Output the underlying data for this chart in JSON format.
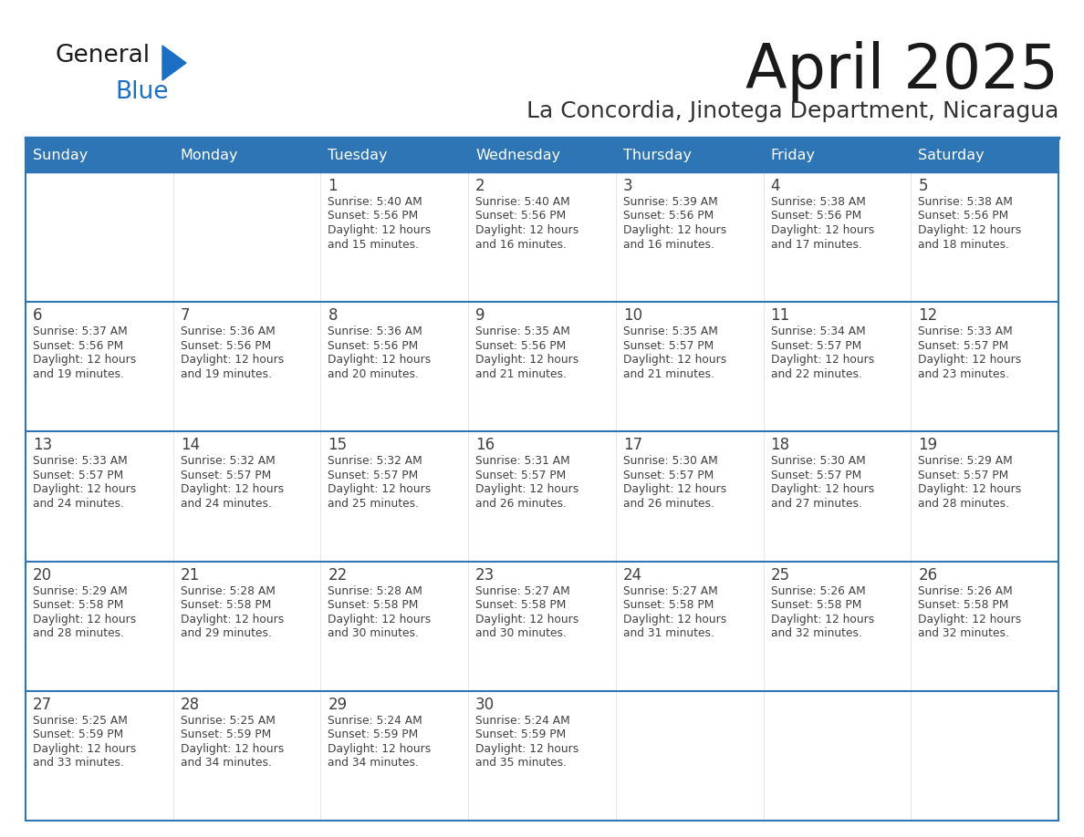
{
  "title": "April 2025",
  "subtitle": "La Concordia, Jinotega Department, Nicaragua",
  "days_of_week": [
    "Sunday",
    "Monday",
    "Tuesday",
    "Wednesday",
    "Thursday",
    "Friday",
    "Saturday"
  ],
  "header_bg": "#2E75B6",
  "header_text": "#FFFFFF",
  "cell_bg": "#FFFFFF",
  "row_border_color": "#2E75B6",
  "col_border_color": "#CCCCCC",
  "text_color": "#404040",
  "title_color": "#1a1a1a",
  "subtitle_color": "#333333",
  "logo_color1": "#1a1a1a",
  "logo_color2": "#1a6fc4",
  "logo_triangle_color": "#1a6fc4",
  "calendar_data": [
    [
      {
        "day": "",
        "sunrise": "",
        "sunset": "",
        "daylight": ""
      },
      {
        "day": "",
        "sunrise": "",
        "sunset": "",
        "daylight": ""
      },
      {
        "day": "1",
        "sunrise": "5:40 AM",
        "sunset": "5:56 PM",
        "daylight": "12 hours and 15 minutes."
      },
      {
        "day": "2",
        "sunrise": "5:40 AM",
        "sunset": "5:56 PM",
        "daylight": "12 hours and 16 minutes."
      },
      {
        "day": "3",
        "sunrise": "5:39 AM",
        "sunset": "5:56 PM",
        "daylight": "12 hours and 16 minutes."
      },
      {
        "day": "4",
        "sunrise": "5:38 AM",
        "sunset": "5:56 PM",
        "daylight": "12 hours and 17 minutes."
      },
      {
        "day": "5",
        "sunrise": "5:38 AM",
        "sunset": "5:56 PM",
        "daylight": "12 hours and 18 minutes."
      }
    ],
    [
      {
        "day": "6",
        "sunrise": "5:37 AM",
        "sunset": "5:56 PM",
        "daylight": "12 hours and 19 minutes."
      },
      {
        "day": "7",
        "sunrise": "5:36 AM",
        "sunset": "5:56 PM",
        "daylight": "12 hours and 19 minutes."
      },
      {
        "day": "8",
        "sunrise": "5:36 AM",
        "sunset": "5:56 PM",
        "daylight": "12 hours and 20 minutes."
      },
      {
        "day": "9",
        "sunrise": "5:35 AM",
        "sunset": "5:56 PM",
        "daylight": "12 hours and 21 minutes."
      },
      {
        "day": "10",
        "sunrise": "5:35 AM",
        "sunset": "5:57 PM",
        "daylight": "12 hours and 21 minutes."
      },
      {
        "day": "11",
        "sunrise": "5:34 AM",
        "sunset": "5:57 PM",
        "daylight": "12 hours and 22 minutes."
      },
      {
        "day": "12",
        "sunrise": "5:33 AM",
        "sunset": "5:57 PM",
        "daylight": "12 hours and 23 minutes."
      }
    ],
    [
      {
        "day": "13",
        "sunrise": "5:33 AM",
        "sunset": "5:57 PM",
        "daylight": "12 hours and 24 minutes."
      },
      {
        "day": "14",
        "sunrise": "5:32 AM",
        "sunset": "5:57 PM",
        "daylight": "12 hours and 24 minutes."
      },
      {
        "day": "15",
        "sunrise": "5:32 AM",
        "sunset": "5:57 PM",
        "daylight": "12 hours and 25 minutes."
      },
      {
        "day": "16",
        "sunrise": "5:31 AM",
        "sunset": "5:57 PM",
        "daylight": "12 hours and 26 minutes."
      },
      {
        "day": "17",
        "sunrise": "5:30 AM",
        "sunset": "5:57 PM",
        "daylight": "12 hours and 26 minutes."
      },
      {
        "day": "18",
        "sunrise": "5:30 AM",
        "sunset": "5:57 PM",
        "daylight": "12 hours and 27 minutes."
      },
      {
        "day": "19",
        "sunrise": "5:29 AM",
        "sunset": "5:57 PM",
        "daylight": "12 hours and 28 minutes."
      }
    ],
    [
      {
        "day": "20",
        "sunrise": "5:29 AM",
        "sunset": "5:58 PM",
        "daylight": "12 hours and 28 minutes."
      },
      {
        "day": "21",
        "sunrise": "5:28 AM",
        "sunset": "5:58 PM",
        "daylight": "12 hours and 29 minutes."
      },
      {
        "day": "22",
        "sunrise": "5:28 AM",
        "sunset": "5:58 PM",
        "daylight": "12 hours and 30 minutes."
      },
      {
        "day": "23",
        "sunrise": "5:27 AM",
        "sunset": "5:58 PM",
        "daylight": "12 hours and 30 minutes."
      },
      {
        "day": "24",
        "sunrise": "5:27 AM",
        "sunset": "5:58 PM",
        "daylight": "12 hours and 31 minutes."
      },
      {
        "day": "25",
        "sunrise": "5:26 AM",
        "sunset": "5:58 PM",
        "daylight": "12 hours and 32 minutes."
      },
      {
        "day": "26",
        "sunrise": "5:26 AM",
        "sunset": "5:58 PM",
        "daylight": "12 hours and 32 minutes."
      }
    ],
    [
      {
        "day": "27",
        "sunrise": "5:25 AM",
        "sunset": "5:59 PM",
        "daylight": "12 hours and 33 minutes."
      },
      {
        "day": "28",
        "sunrise": "5:25 AM",
        "sunset": "5:59 PM",
        "daylight": "12 hours and 34 minutes."
      },
      {
        "day": "29",
        "sunrise": "5:24 AM",
        "sunset": "5:59 PM",
        "daylight": "12 hours and 34 minutes."
      },
      {
        "day": "30",
        "sunrise": "5:24 AM",
        "sunset": "5:59 PM",
        "daylight": "12 hours and 35 minutes."
      },
      {
        "day": "",
        "sunrise": "",
        "sunset": "",
        "daylight": ""
      },
      {
        "day": "",
        "sunrise": "",
        "sunset": "",
        "daylight": ""
      },
      {
        "day": "",
        "sunrise": "",
        "sunset": "",
        "daylight": ""
      }
    ]
  ]
}
